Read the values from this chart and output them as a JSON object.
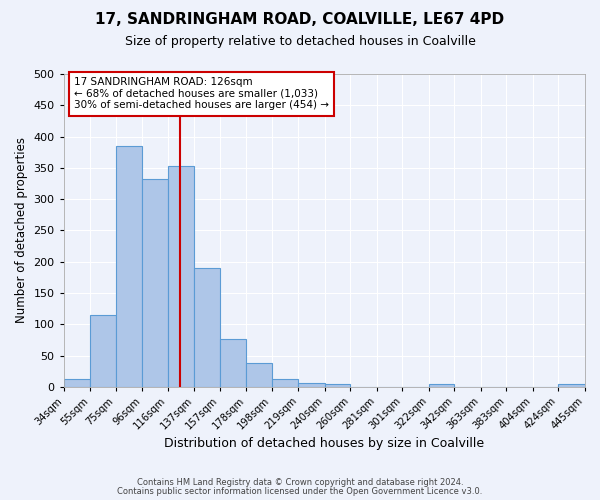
{
  "title": "17, SANDRINGHAM ROAD, COALVILLE, LE67 4PD",
  "subtitle": "Size of property relative to detached houses in Coalville",
  "xlabel": "Distribution of detached houses by size in Coalville",
  "ylabel": "Number of detached properties",
  "bar_labels": [
    "34sqm",
    "55sqm",
    "75sqm",
    "96sqm",
    "116sqm",
    "137sqm",
    "157sqm",
    "178sqm",
    "198sqm",
    "219sqm",
    "240sqm",
    "260sqm",
    "281sqm",
    "301sqm",
    "322sqm",
    "342sqm",
    "363sqm",
    "383sqm",
    "404sqm",
    "424sqm",
    "445sqm"
  ],
  "bar_values": [
    13,
    115,
    385,
    332,
    353,
    190,
    76,
    38,
    13,
    6,
    4,
    0,
    0,
    0,
    4,
    0,
    0,
    0,
    0,
    4
  ],
  "bar_color": "#aec6e8",
  "bar_edge_color": "#5b9bd5",
  "property_line_x": 126,
  "property_line_label": "17 SANDRINGHAM ROAD: 126sqm",
  "annotation_line1": "← 68% of detached houses are smaller (1,033)",
  "annotation_line2": "30% of semi-detached houses are larger (454) →",
  "annotation_box_color": "#ffffff",
  "annotation_box_edgecolor": "#cc0000",
  "vline_color": "#cc0000",
  "bg_color": "#eef2fb",
  "grid_color": "#ffffff",
  "footer1": "Contains HM Land Registry data © Crown copyright and database right 2024.",
  "footer2": "Contains public sector information licensed under the Open Government Licence v3.0.",
  "bin_edges": [
    34,
    55,
    75,
    96,
    116,
    137,
    157,
    178,
    198,
    219,
    240,
    260,
    281,
    301,
    322,
    342,
    363,
    383,
    404,
    424,
    445
  ],
  "ylim": [
    0,
    500
  ],
  "yticks": [
    0,
    50,
    100,
    150,
    200,
    250,
    300,
    350,
    400,
    450,
    500
  ]
}
